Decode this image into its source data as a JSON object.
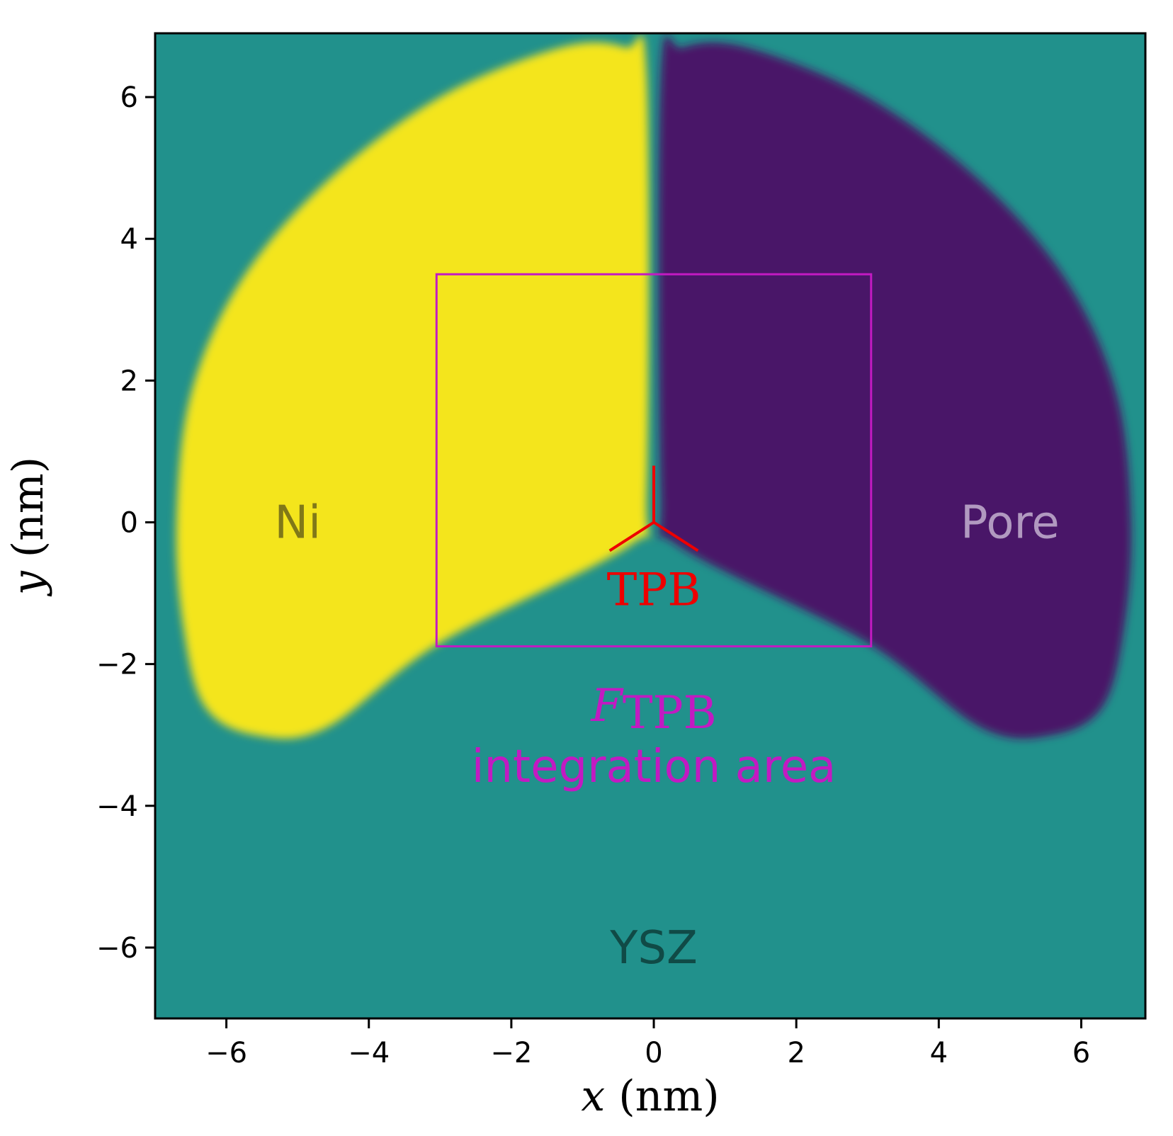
{
  "chart_data": {
    "type": "heatmap",
    "xlabel_var": "x",
    "xlabel_unit": " (nm)",
    "ylabel_var": "y",
    "ylabel_unit": " (nm)",
    "xlim": [
      -7,
      6.9
    ],
    "ylim": [
      -7,
      6.9
    ],
    "x_ticks": [
      -6,
      -4,
      -2,
      0,
      2,
      4,
      6
    ],
    "y_ticks": [
      -6,
      -4,
      -2,
      0,
      2,
      4,
      6
    ],
    "x_tick_labels": [
      "−6",
      "−4",
      "−2",
      "0",
      "2",
      "4",
      "6"
    ],
    "y_tick_labels": [
      "−6",
      "−4",
      "−2",
      "0",
      "2",
      "4",
      "6"
    ],
    "colors": {
      "background": "#21918c",
      "ni": "#f4e51e",
      "pore": "#481567",
      "integration_box": "#c21ac2",
      "tpb": "#ee0000",
      "ni_text": "#807818",
      "pore_text": "#b199c0",
      "ysz_text": "#104a46"
    },
    "regions": [
      {
        "name": "Ni",
        "polygon": [
          [
            -0.1,
            6.3
          ],
          [
            -0.1,
            0.4
          ],
          [
            -0.3,
            -0.3
          ],
          [
            -3.0,
            -1.7
          ],
          [
            -4.6,
            -2.9
          ],
          [
            -5.6,
            -3.0
          ],
          [
            -6.3,
            -2.6
          ],
          [
            -6.6,
            -1.5
          ],
          [
            -6.7,
            0.0
          ],
          [
            -6.5,
            1.8
          ],
          [
            -5.8,
            3.4
          ],
          [
            -4.6,
            4.8
          ],
          [
            -3.0,
            6.0
          ],
          [
            -1.3,
            6.7
          ],
          [
            -0.4,
            6.7
          ]
        ]
      },
      {
        "name": "Pore",
        "polygon": [
          [
            0.1,
            6.3
          ],
          [
            0.1,
            0.4
          ],
          [
            0.3,
            -0.3
          ],
          [
            3.0,
            -1.7
          ],
          [
            4.6,
            -2.9
          ],
          [
            5.6,
            -3.0
          ],
          [
            6.3,
            -2.6
          ],
          [
            6.6,
            -1.5
          ],
          [
            6.7,
            0.0
          ],
          [
            6.5,
            1.8
          ],
          [
            5.8,
            3.4
          ],
          [
            4.6,
            4.8
          ],
          [
            3.0,
            6.0
          ],
          [
            1.3,
            6.7
          ],
          [
            0.4,
            6.7
          ]
        ]
      }
    ],
    "integration_box": {
      "x0": -3.05,
      "x1": 3.05,
      "y0": -1.75,
      "y1": 3.5
    },
    "tpb_point": {
      "x": 0,
      "y": 0
    },
    "tpb_arms": [
      [
        0,
        0.8
      ],
      [
        -0.62,
        -0.4
      ],
      [
        0.62,
        -0.4
      ]
    ],
    "annotations": {
      "ni": {
        "text": "Ni",
        "x": -5.0,
        "y": 0
      },
      "pore": {
        "text": "Pore",
        "x": 5.0,
        "y": 0
      },
      "ysz": {
        "text": "YSZ",
        "x": 0,
        "y": -6
      },
      "tpb": {
        "text": "TPB",
        "x": 0,
        "y": -0.95
      },
      "f_main": "F",
      "f_sub": "TPB",
      "area": "integration area"
    }
  }
}
